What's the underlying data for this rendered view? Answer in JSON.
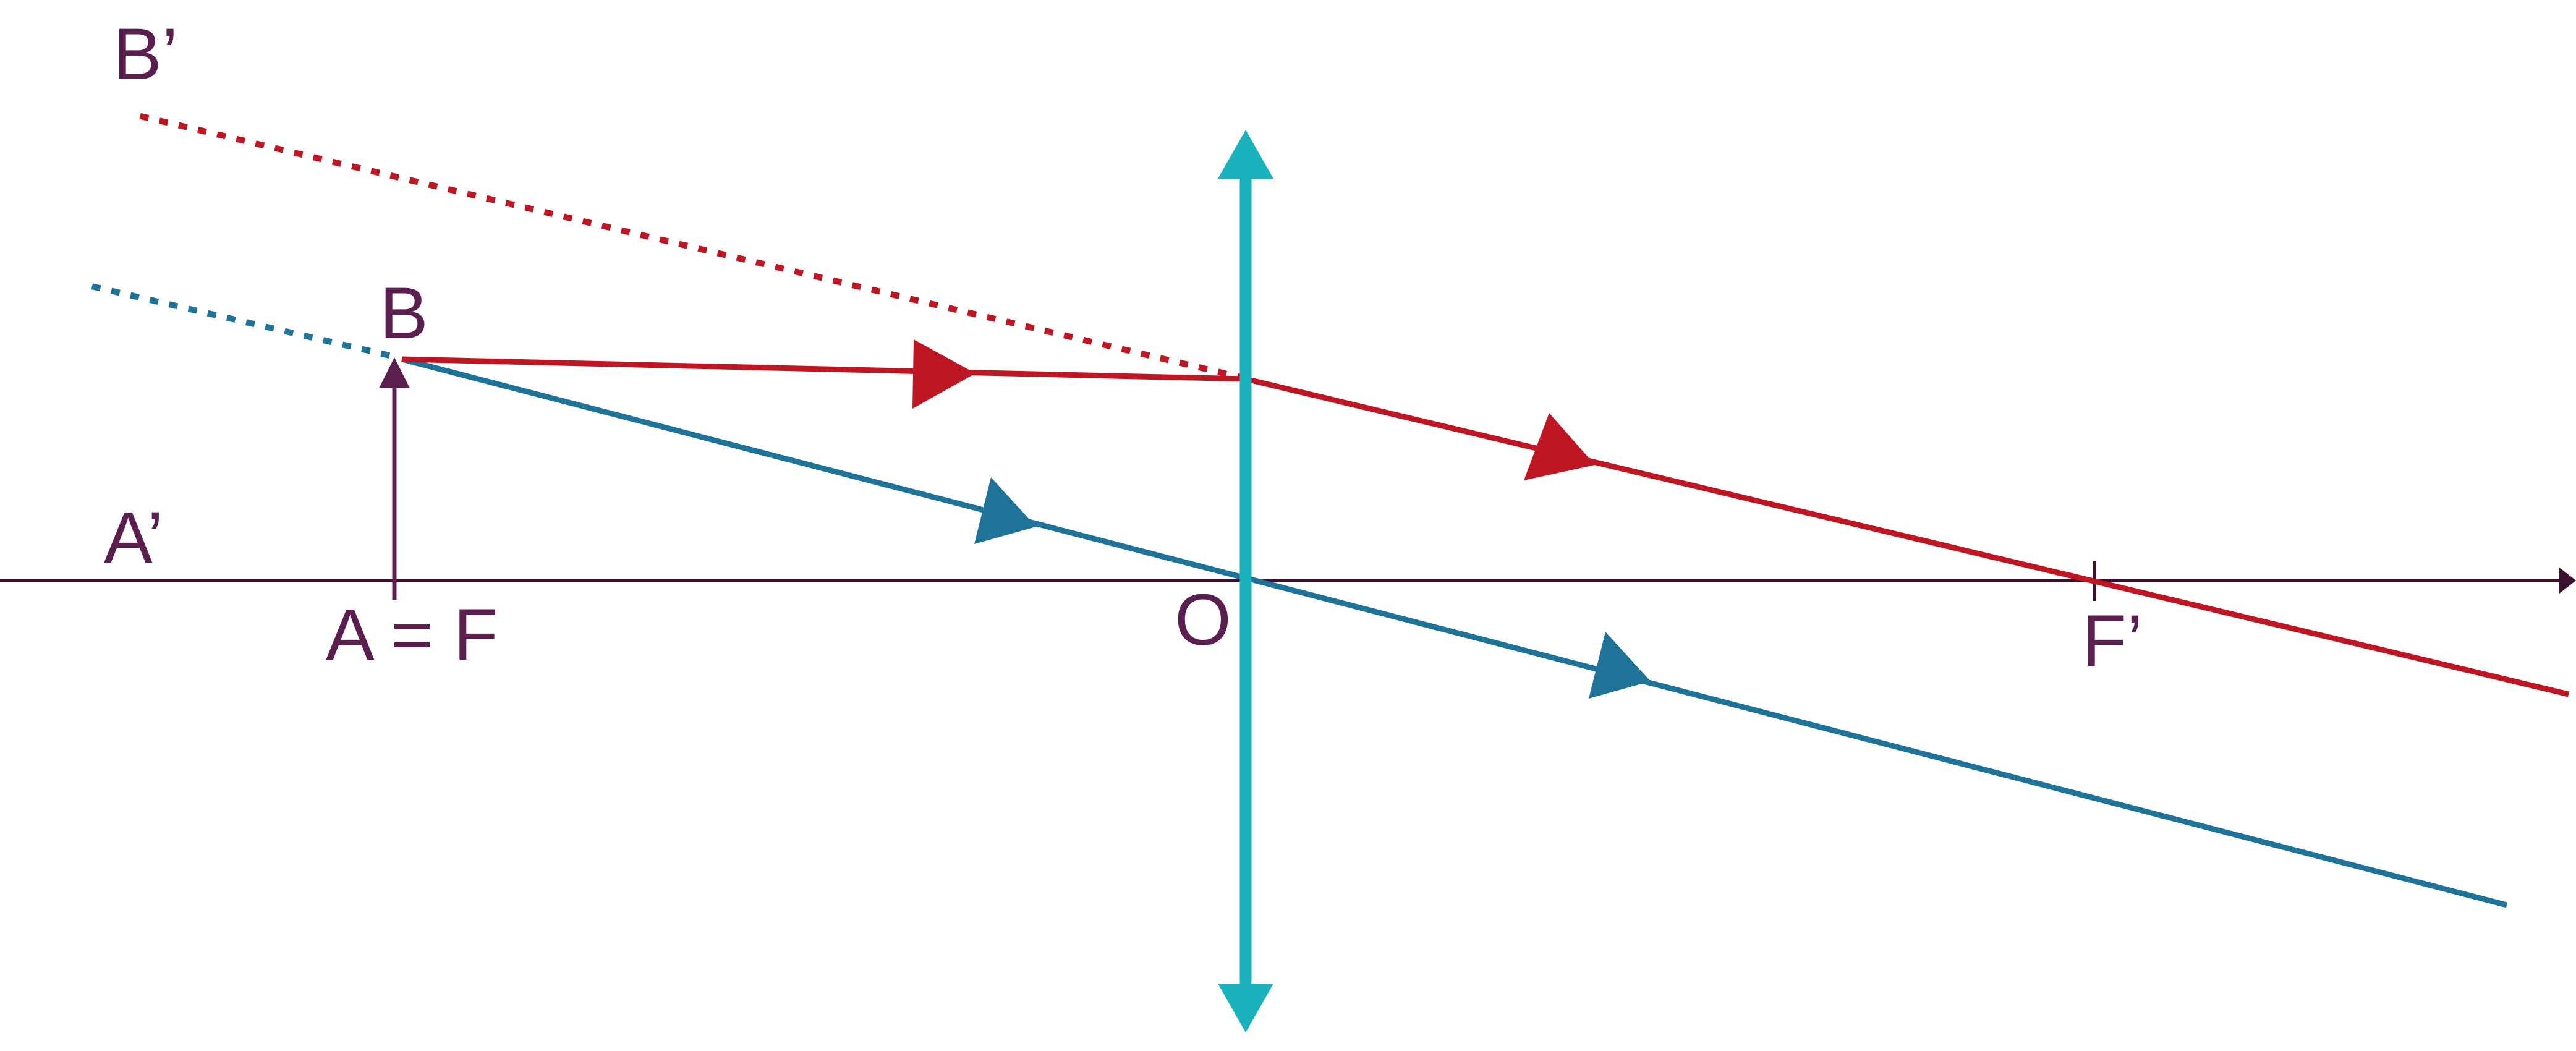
{
  "labels": {
    "b_prime": "B’",
    "b": "B",
    "a_prime": "A’",
    "a_eq_f": "A = F",
    "o": "O",
    "f_prime": "F’"
  },
  "colors": {
    "axis": "#3a1230",
    "label": "#5a1f4f",
    "lens": "#1ab2bd",
    "ray_red": "#be1622",
    "ray_blue": "#1f7399",
    "object": "#5a1f4f",
    "background": "#ffffff"
  }
}
